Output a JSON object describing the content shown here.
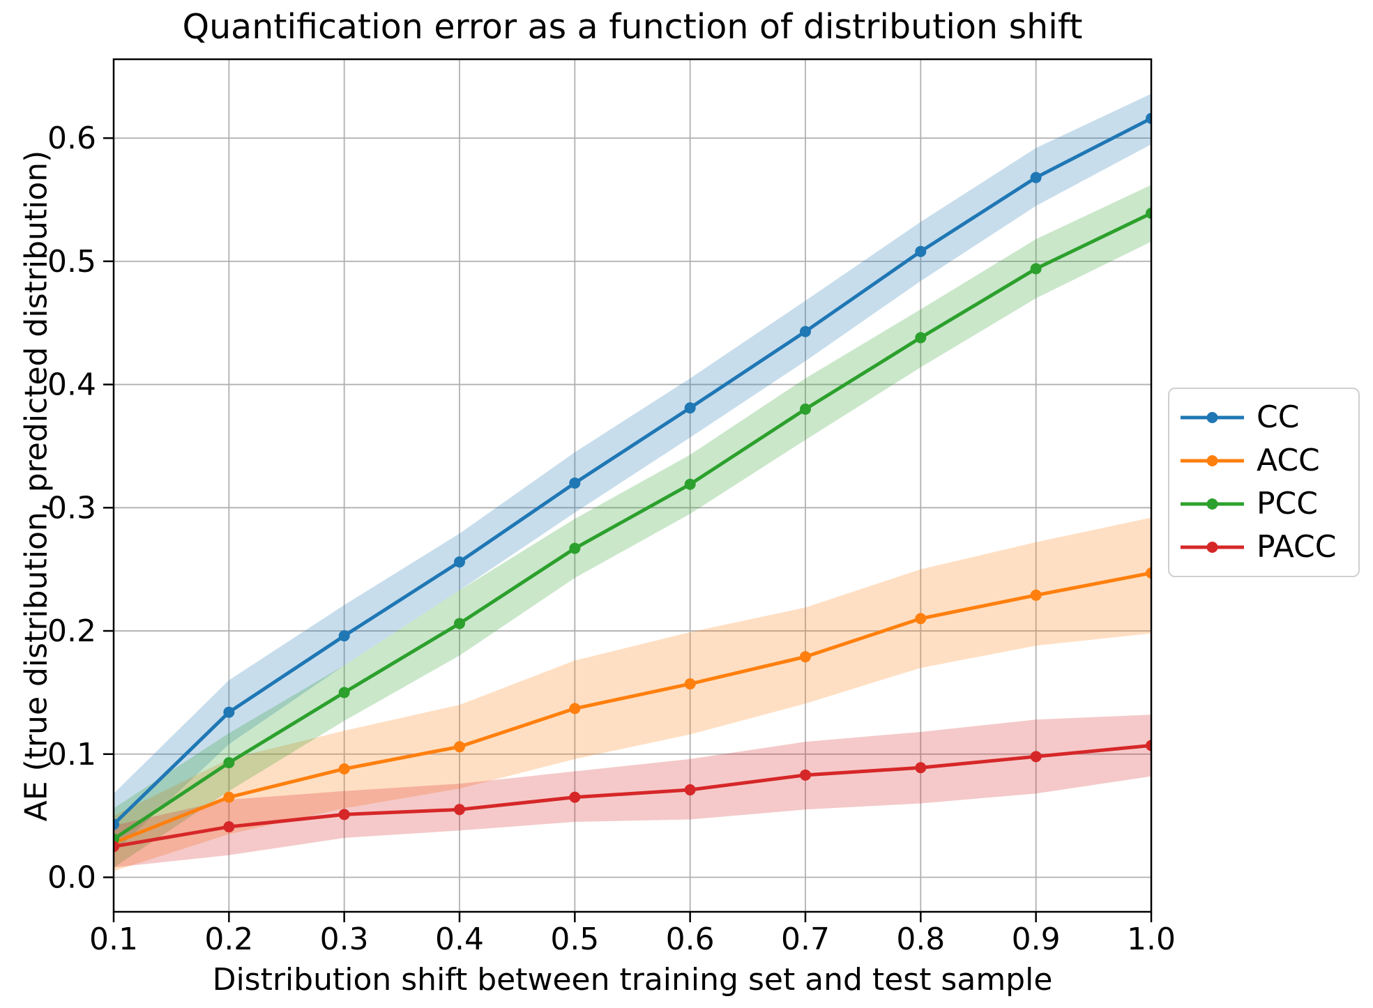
{
  "chart_data": {
    "type": "line",
    "title": "Quantification error as a function of distribution shift",
    "xlabel": "Distribution shift between training set and test sample",
    "ylabel": "AE (true distribution, predicted distribution)",
    "x": [
      0.1,
      0.2,
      0.3,
      0.4,
      0.5,
      0.6,
      0.7,
      0.8,
      0.9,
      1.0
    ],
    "x_tick_labels": [
      "0.1",
      "0.2",
      "0.3",
      "0.4",
      "0.5",
      "0.6",
      "0.7",
      "0.8",
      "0.9",
      "1.0"
    ],
    "y_ticks": [
      0.0,
      0.1,
      0.2,
      0.3,
      0.4,
      0.5,
      0.6
    ],
    "y_tick_labels": [
      "0.0",
      "0.1",
      "0.2",
      "0.3",
      "0.4",
      "0.5",
      "0.6"
    ],
    "xlim": [
      0.1,
      1.0
    ],
    "ylim": [
      -0.028,
      0.664
    ],
    "grid": true,
    "grid_color": "#b0b0b0",
    "axis_color": "#000000",
    "band_opacity": 0.25,
    "legend_position": "right-outside-center",
    "series": [
      {
        "name": "CC",
        "color": "#1f77b4",
        "values": [
          0.043,
          0.134,
          0.196,
          0.256,
          0.32,
          0.381,
          0.443,
          0.508,
          0.568,
          0.616
        ],
        "band_lower": [
          0.02,
          0.108,
          0.172,
          0.233,
          0.296,
          0.357,
          0.419,
          0.484,
          0.545,
          0.595
        ],
        "band_upper": [
          0.068,
          0.16,
          0.221,
          0.279,
          0.345,
          0.405,
          0.468,
          0.532,
          0.592,
          0.636
        ]
      },
      {
        "name": "ACC",
        "color": "#ff7f0e",
        "values": [
          0.028,
          0.065,
          0.088,
          0.106,
          0.137,
          0.157,
          0.179,
          0.21,
          0.229,
          0.247
        ],
        "band_lower": [
          0.005,
          0.035,
          0.056,
          0.072,
          0.096,
          0.116,
          0.141,
          0.17,
          0.188,
          0.198
        ],
        "band_upper": [
          0.05,
          0.096,
          0.119,
          0.14,
          0.176,
          0.199,
          0.219,
          0.25,
          0.272,
          0.292
        ]
      },
      {
        "name": "PCC",
        "color": "#2ca02c",
        "values": [
          0.031,
          0.093,
          0.15,
          0.206,
          0.267,
          0.319,
          0.38,
          0.438,
          0.494,
          0.539
        ],
        "band_lower": [
          0.008,
          0.07,
          0.127,
          0.18,
          0.243,
          0.295,
          0.355,
          0.414,
          0.47,
          0.516
        ],
        "band_upper": [
          0.056,
          0.117,
          0.172,
          0.233,
          0.291,
          0.343,
          0.405,
          0.461,
          0.518,
          0.562
        ]
      },
      {
        "name": "PACC",
        "color": "#d62728",
        "values": [
          0.025,
          0.041,
          0.051,
          0.055,
          0.065,
          0.071,
          0.083,
          0.089,
          0.098,
          0.107
        ],
        "band_lower": [
          0.008,
          0.018,
          0.032,
          0.038,
          0.045,
          0.047,
          0.055,
          0.06,
          0.068,
          0.082
        ],
        "band_upper": [
          0.042,
          0.063,
          0.07,
          0.076,
          0.086,
          0.096,
          0.11,
          0.118,
          0.128,
          0.132
        ]
      }
    ]
  }
}
